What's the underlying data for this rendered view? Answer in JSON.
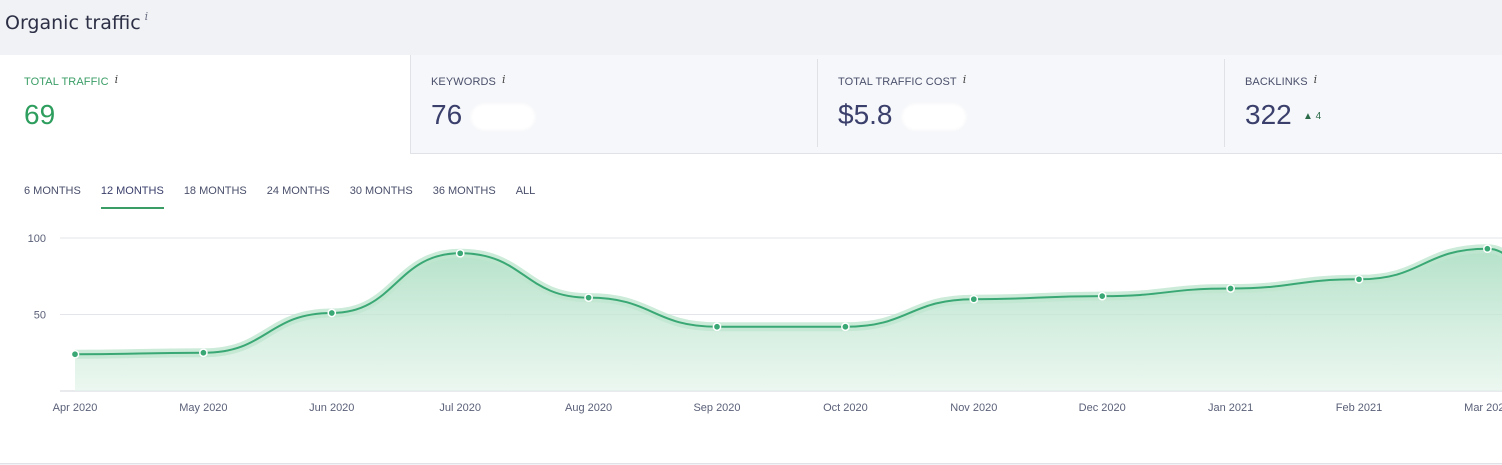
{
  "header": {
    "title": "Organic traffic",
    "info": "i"
  },
  "cards": [
    {
      "label": "TOTAL TRAFFIC",
      "info": "i",
      "value": "69",
      "active": true
    },
    {
      "label": "KEYWORDS",
      "info": "i",
      "value": "76"
    },
    {
      "label": "TOTAL TRAFFIC COST",
      "info": "i",
      "value": "$5.8"
    },
    {
      "label": "BACKLINKS",
      "info": "i",
      "value": "322",
      "delta": "▲ 4"
    }
  ],
  "tabs": [
    "6 MONTHS",
    "12 MONTHS",
    "18 MONTHS",
    "24 MONTHS",
    "30 MONTHS",
    "36 MONTHS",
    "ALL"
  ],
  "selected_tab": "12 MONTHS",
  "colors": {
    "accent": "#3a9d66",
    "line": "#3aa874",
    "fill": "#bfe5cf"
  },
  "chart_data": {
    "type": "area",
    "x": [
      "Apr 2020",
      "May 2020",
      "Jun 2020",
      "Jul 2020",
      "Aug 2020",
      "Sep 2020",
      "Oct 2020",
      "Nov 2020",
      "Dec 2020",
      "Jan 2021",
      "Feb 2021",
      "Mar 2021"
    ],
    "series": [
      {
        "values": [
          24,
          25,
          51,
          90,
          61,
          42,
          42,
          60,
          62,
          67,
          73,
          93
        ]
      }
    ],
    "yticks": [
      50,
      100
    ],
    "ylim": [
      0,
      100
    ],
    "grid": true,
    "legend": "none"
  }
}
